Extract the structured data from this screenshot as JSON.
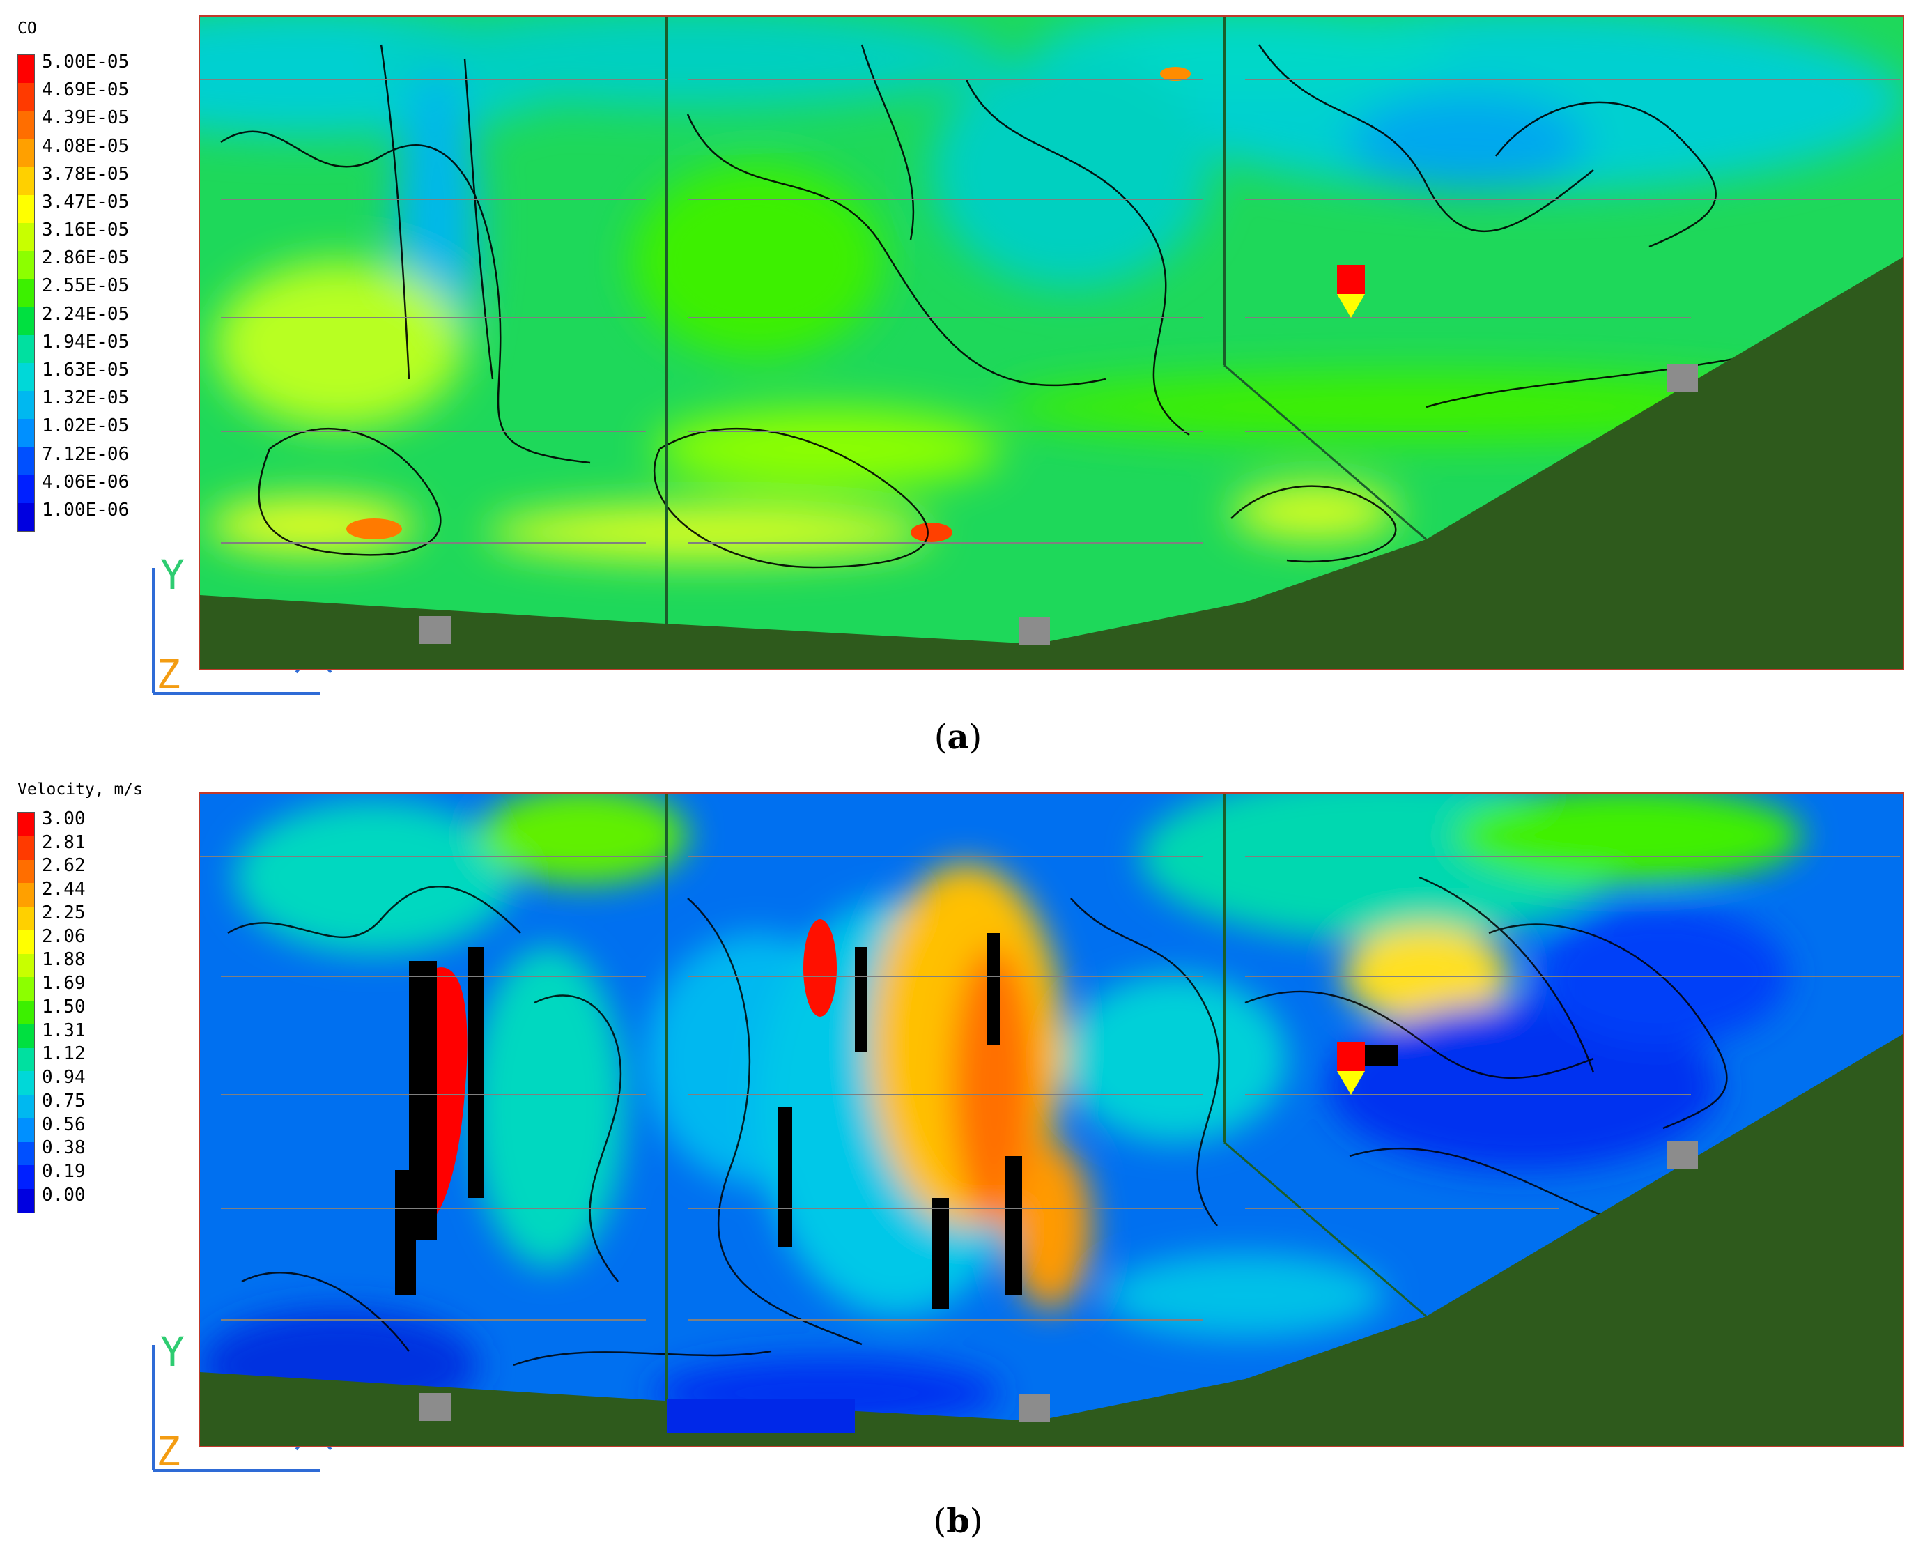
{
  "panels": [
    {
      "id": "a",
      "caption_open": "(",
      "caption_letter": "a",
      "caption_close": ")",
      "legend_title": "CO",
      "legend": [
        {
          "label": "5.00E-05",
          "color": "#ff0000"
        },
        {
          "label": "4.69E-05",
          "color": "#ff3a00"
        },
        {
          "label": "4.39E-05",
          "color": "#ff6e00"
        },
        {
          "label": "4.08E-05",
          "color": "#ffa000"
        },
        {
          "label": "3.78E-05",
          "color": "#ffd000"
        },
        {
          "label": "3.47E-05",
          "color": "#ffff00"
        },
        {
          "label": "3.16E-05",
          "color": "#c8ff00"
        },
        {
          "label": "2.86E-05",
          "color": "#8cff00"
        },
        {
          "label": "2.55E-05",
          "color": "#3cf000"
        },
        {
          "label": "2.24E-05",
          "color": "#00e040"
        },
        {
          "label": "1.94E-05",
          "color": "#00e0a0"
        },
        {
          "label": "1.63E-05",
          "color": "#00d8d8"
        },
        {
          "label": "1.32E-05",
          "color": "#00b8f0"
        },
        {
          "label": "1.02E-05",
          "color": "#0090ff"
        },
        {
          "label": "7.12E-06",
          "color": "#0050ff"
        },
        {
          "label": "4.06E-06",
          "color": "#0020ff"
        },
        {
          "label": "1.00E-06",
          "color": "#0000e0"
        }
      ]
    },
    {
      "id": "b",
      "caption_open": "(",
      "caption_letter": "b",
      "caption_close": ")",
      "legend_title": "Velocity, m/s",
      "legend": [
        {
          "label": "3.00",
          "color": "#ff0000"
        },
        {
          "label": "2.81",
          "color": "#ff3a00"
        },
        {
          "label": "2.62",
          "color": "#ff6e00"
        },
        {
          "label": "2.44",
          "color": "#ffa000"
        },
        {
          "label": "2.25",
          "color": "#ffd000"
        },
        {
          "label": "2.06",
          "color": "#ffff00"
        },
        {
          "label": "1.88",
          "color": "#c8ff00"
        },
        {
          "label": "1.69",
          "color": "#8cff00"
        },
        {
          "label": "1.50",
          "color": "#3cf000"
        },
        {
          "label": "1.31",
          "color": "#00e040"
        },
        {
          "label": "1.12",
          "color": "#00e0a0"
        },
        {
          "label": "0.94",
          "color": "#00d8d8"
        },
        {
          "label": "0.75",
          "color": "#00b8f0"
        },
        {
          "label": "0.56",
          "color": "#0090ff"
        },
        {
          "label": "0.38",
          "color": "#0050ff"
        },
        {
          "label": "0.19",
          "color": "#0020ff"
        },
        {
          "label": "0.00",
          "color": "#0000e0"
        }
      ]
    }
  ],
  "axis_labels": {
    "y": "Y",
    "z": "Z"
  },
  "colors": {
    "ground": "#2e5a1c",
    "frame": "#c0392b",
    "gridline": "#808080",
    "marker_red": "#ff0000",
    "marker_yellow": "#ffff00",
    "block_gray": "#8c8c8c",
    "axis_y": "#2ecc71",
    "axis_z": "#f39c12",
    "axis_x": "#2e6bd6"
  },
  "chart_data": [
    {
      "type": "heatmap",
      "title": "",
      "variable": "CO",
      "colorbar_ticks": [
        "5.00E-05",
        "4.69E-05",
        "4.39E-05",
        "4.08E-05",
        "3.78E-05",
        "3.47E-05",
        "3.16E-05",
        "2.86E-05",
        "2.55E-05",
        "2.24E-05",
        "1.94E-05",
        "1.63E-05",
        "1.32E-05",
        "1.02E-05",
        "7.12E-06",
        "4.06E-06",
        "1.00E-06"
      ],
      "range": [
        1e-06,
        5e-05
      ],
      "axes_shown": [
        "Y",
        "Z"
      ]
    },
    {
      "type": "heatmap",
      "title": "",
      "variable": "Velocity, m/s",
      "colorbar_ticks": [
        "3.00",
        "2.81",
        "2.62",
        "2.44",
        "2.25",
        "2.06",
        "1.88",
        "1.69",
        "1.50",
        "1.31",
        "1.12",
        "0.94",
        "0.75",
        "0.56",
        "0.38",
        "0.19",
        "0.00"
      ],
      "range": [
        0.0,
        3.0
      ],
      "axes_shown": [
        "Y",
        "Z"
      ]
    }
  ]
}
